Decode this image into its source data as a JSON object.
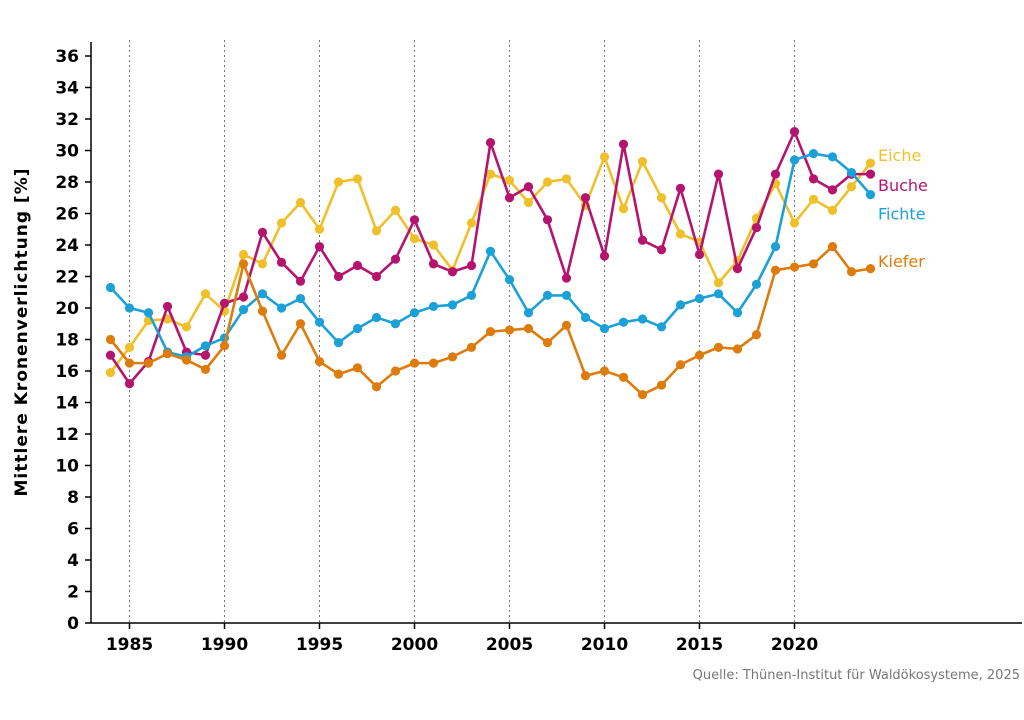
{
  "chart_data": {
    "type": "line",
    "title": "",
    "ylabel": "Mittlere Kronenverlichtung [%]",
    "xlabel": "",
    "xlim": [
      1983,
      2031
    ],
    "ylim": [
      0,
      37
    ],
    "x_ticks": [
      1985,
      1990,
      1995,
      2000,
      2005,
      2010,
      2015,
      2020
    ],
    "y_ticks": [
      0,
      2,
      4,
      6,
      8,
      10,
      12,
      14,
      16,
      18,
      20,
      22,
      24,
      26,
      28,
      30,
      32,
      34,
      36
    ],
    "vertical_grid": true,
    "x": [
      1984,
      1985,
      1986,
      1987,
      1988,
      1989,
      1990,
      1991,
      1992,
      1993,
      1994,
      1995,
      1996,
      1997,
      1998,
      1999,
      2000,
      2001,
      2002,
      2003,
      2004,
      2005,
      2006,
      2007,
      2008,
      2009,
      2010,
      2011,
      2012,
      2013,
      2014,
      2015,
      2016,
      2017,
      2018,
      2019,
      2020,
      2021,
      2022,
      2023,
      2024
    ],
    "series": [
      {
        "name": "Eiche",
        "color": "#f0c02a",
        "values": [
          15.9,
          17.5,
          19.2,
          19.3,
          18.8,
          20.9,
          19.8,
          23.4,
          22.8,
          25.4,
          26.7,
          25.0,
          28.0,
          28.2,
          24.9,
          26.2,
          24.4,
          24.0,
          22.4,
          25.4,
          28.5,
          28.1,
          26.7,
          28.0,
          28.2,
          26.5,
          29.6,
          26.3,
          29.3,
          27.0,
          24.7,
          24.2,
          21.6,
          23.0,
          25.7,
          27.9,
          25.4,
          26.9,
          26.2,
          27.7,
          29.2
        ]
      },
      {
        "name": "Buche",
        "color": "#b5146e",
        "values": [
          17.0,
          15.2,
          16.6,
          20.1,
          17.2,
          17.0,
          20.3,
          20.7,
          24.8,
          22.9,
          21.7,
          23.9,
          22.0,
          22.7,
          22.0,
          23.1,
          25.6,
          22.8,
          22.3,
          22.7,
          30.5,
          27.0,
          27.7,
          25.6,
          21.9,
          27.0,
          23.3,
          30.4,
          24.3,
          23.7,
          27.6,
          23.4,
          28.5,
          22.5,
          25.1,
          28.5,
          31.2,
          28.2,
          27.5,
          28.5,
          28.5
        ]
      },
      {
        "name": "Fichte",
        "color": "#1ba0d8",
        "values": [
          21.3,
          20.0,
          19.7,
          17.2,
          16.9,
          17.6,
          18.1,
          19.9,
          20.9,
          20.0,
          20.6,
          19.1,
          17.8,
          18.7,
          19.4,
          19.0,
          19.7,
          20.1,
          20.2,
          20.8,
          23.6,
          21.8,
          19.7,
          20.8,
          20.8,
          19.4,
          18.7,
          19.1,
          19.3,
          18.8,
          20.2,
          20.6,
          20.9,
          19.7,
          21.5,
          23.9,
          29.4,
          29.8,
          29.6,
          28.6,
          27.2
        ]
      },
      {
        "name": "Kiefer",
        "color": "#dd7c0c",
        "values": [
          18.0,
          16.5,
          16.5,
          17.1,
          16.7,
          16.1,
          17.6,
          22.8,
          19.8,
          17.0,
          19.0,
          16.6,
          15.8,
          16.2,
          15.0,
          16.0,
          16.5,
          16.5,
          16.9,
          17.5,
          18.5,
          18.6,
          18.7,
          17.8,
          18.9,
          15.7,
          16.0,
          15.6,
          14.5,
          15.1,
          16.4,
          17.0,
          17.5,
          17.4,
          18.3,
          22.4,
          22.6,
          22.8,
          23.9,
          22.3,
          22.5
        ]
      }
    ],
    "legend": [
      {
        "label": "Eiche",
        "color": "#f0c02a",
        "anchor_y": 29.7
      },
      {
        "label": "Buche",
        "color": "#b5146e",
        "anchor_y": 27.8
      },
      {
        "label": "Fichte",
        "color": "#1ba0d8",
        "anchor_y": 26.0
      },
      {
        "label": "Kiefer",
        "color": "#dd7c0c",
        "anchor_y": 23.0
      }
    ],
    "source": "Quelle: Thünen-Institut für Waldökosysteme, 2025"
  }
}
